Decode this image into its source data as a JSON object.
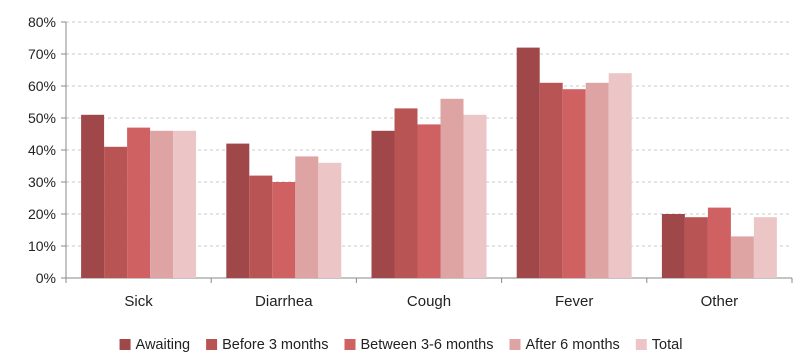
{
  "chart_data": {
    "type": "bar",
    "title": "",
    "xlabel": "",
    "ylabel": "",
    "categories": [
      "Sick",
      "Diarrhea",
      "Cough",
      "Fever",
      "Other"
    ],
    "series": [
      {
        "name": "Awaiting",
        "color": "#a0474a",
        "values": [
          51,
          42,
          46,
          72,
          20
        ]
      },
      {
        "name": "Before 3 months",
        "color": "#b95455",
        "values": [
          41,
          32,
          53,
          61,
          19
        ]
      },
      {
        "name": "Between 3-6 months",
        "color": "#cf6162",
        "values": [
          47,
          30,
          48,
          59,
          22
        ]
      },
      {
        "name": "After 6 months",
        "color": "#dea4a4",
        "values": [
          46,
          38,
          56,
          61,
          13
        ]
      },
      {
        "name": "Total",
        "color": "#ecc6c6",
        "values": [
          46,
          36,
          51,
          64,
          19
        ]
      }
    ],
    "ylim": [
      0,
      80
    ],
    "yticks": [
      "0%",
      "10%",
      "20%",
      "30%",
      "40%",
      "50%",
      "60%",
      "70%",
      "80%"
    ],
    "grid": true,
    "legend_position": "bottom"
  }
}
